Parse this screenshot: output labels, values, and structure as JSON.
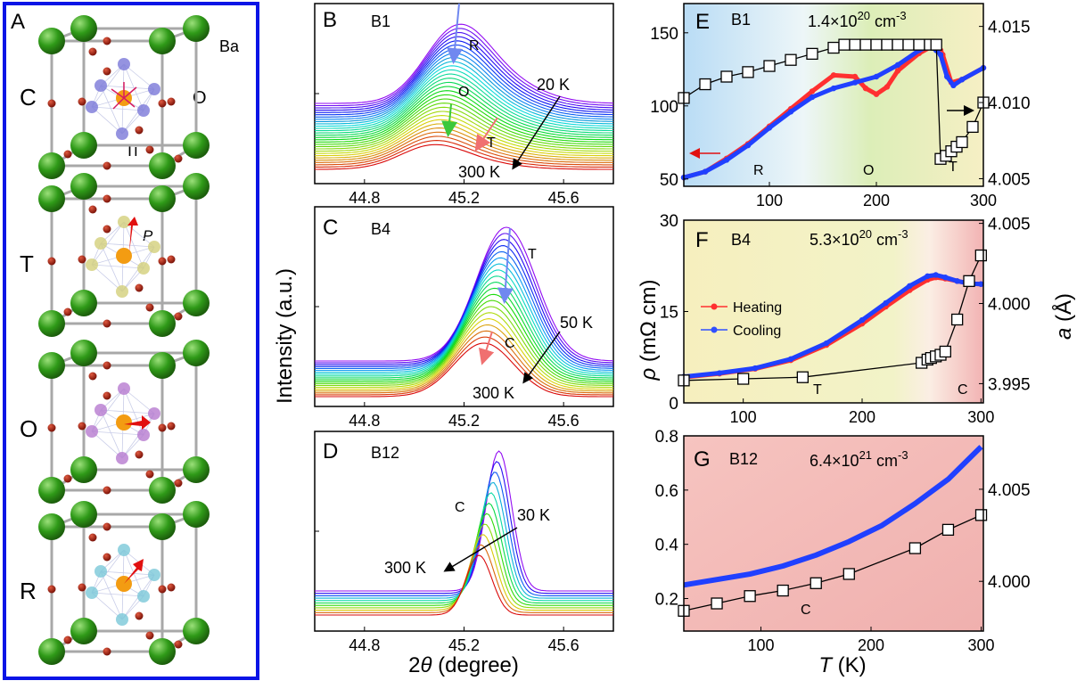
{
  "panel_a": {
    "letter": "A",
    "atom_labels": {
      "ba": "Ba",
      "o": "O",
      "ti": "Ti",
      "p": "P"
    },
    "phases": [
      "C",
      "T",
      "O",
      "R"
    ],
    "colors": {
      "ba": "#2f9a18",
      "o": "#a31f10",
      "ti": "#f39c12",
      "frame": "#0a14e6",
      "arrow": "#e11010"
    }
  },
  "xrd": {
    "shared_ylabel": "Intensity (a.u.)",
    "shared_xlabel": "2θ (degree)",
    "xlabel_theta": "θ",
    "xlabel_prefix": "2",
    "xlabel_unit": " (degree)",
    "ticks": [
      "44.8",
      "45.2",
      "45.6"
    ]
  },
  "chart_data": [
    {
      "type": "line",
      "panel": "B",
      "sample": "B1",
      "xlim": [
        44.6,
        45.8
      ],
      "xticks": [
        44.8,
        45.2,
        45.6
      ],
      "temperature_labels": [
        "20 K",
        "300 K"
      ],
      "phase_labels": [
        "R",
        "O",
        "T"
      ],
      "curve_count": 30,
      "peaks": {
        "R": 45.17,
        "O": 45.12,
        "T": 45.07
      }
    },
    {
      "type": "line",
      "panel": "C",
      "sample": "B4",
      "xlim": [
        44.6,
        45.8
      ],
      "xticks": [
        44.8,
        45.2,
        45.6
      ],
      "temperature_labels": [
        "50 K",
        "300 K"
      ],
      "phase_labels": [
        "T",
        "C"
      ],
      "curve_count": 20,
      "peaks": {
        "T": 45.37,
        "C": 45.28
      }
    },
    {
      "type": "line",
      "panel": "D",
      "sample": "B12",
      "xlim": [
        44.6,
        45.8
      ],
      "xticks": [
        44.8,
        45.2,
        45.6
      ],
      "temperature_labels": [
        "30 K",
        "300 K"
      ],
      "phase_labels": [
        "C"
      ],
      "curve_count": 11,
      "peaks": {
        "low_T": 45.34,
        "high_T": 45.26
      }
    },
    {
      "type": "line",
      "panel": "E",
      "sample": "B1",
      "carrier": "1.4×10",
      "carrier_exp": "20",
      "carrier_unit": " cm",
      "carrier_unit_exp": "-3",
      "xlim": [
        20,
        300
      ],
      "xticks": [
        100,
        200,
        300
      ],
      "ylim_left": [
        45,
        170
      ],
      "yticks_left": [
        50,
        100,
        150
      ],
      "ylim_right": [
        4.0045,
        4.0165
      ],
      "yticks_right": [
        "4.005",
        "4.010",
        "4.015"
      ],
      "phase_labels": [
        "R",
        "O",
        "T"
      ],
      "heating": {
        "x": [
          20,
          40,
          60,
          80,
          100,
          120,
          140,
          160,
          180,
          190,
          200,
          210,
          220,
          240,
          250,
          260,
          262,
          270,
          280,
          300
        ],
        "y": [
          51,
          55,
          64,
          74,
          86,
          98,
          110,
          121,
          120,
          112,
          108,
          113,
          124,
          136,
          140,
          138,
          135,
          116,
          118,
          126
        ]
      },
      "cooling": {
        "x": [
          20,
          40,
          60,
          80,
          100,
          120,
          140,
          160,
          180,
          200,
          220,
          240,
          250,
          256,
          260,
          266,
          272,
          280,
          300
        ],
        "y": [
          51,
          55,
          63,
          73,
          85,
          96,
          106,
          112,
          116,
          120,
          128,
          138,
          141,
          138,
          135,
          120,
          114,
          118,
          126
        ]
      },
      "lattice": {
        "x": [
          20,
          40,
          60,
          80,
          100,
          120,
          140,
          160,
          170,
          180,
          190,
          200,
          210,
          220,
          230,
          240,
          250,
          256,
          260,
          265,
          270,
          275,
          280,
          290,
          300
        ],
        "y": [
          4.0103,
          4.0112,
          4.0117,
          4.012,
          4.0124,
          4.0128,
          4.0132,
          4.0136,
          4.0138,
          4.0138,
          4.0138,
          4.0138,
          4.0138,
          4.0138,
          4.0138,
          4.0138,
          4.0138,
          4.0138,
          4.0063,
          4.0065,
          4.0068,
          4.0071,
          4.0074,
          4.0084,
          4.01
        ]
      }
    },
    {
      "type": "line",
      "panel": "F",
      "sample": "B4",
      "carrier": "5.3×10",
      "carrier_exp": "20",
      "carrier_unit": " cm",
      "carrier_unit_exp": "-3",
      "xlim": [
        50,
        302
      ],
      "xticks": [
        100,
        200,
        300
      ],
      "ylim_left": [
        0,
        30
      ],
      "yticks_left": [
        0,
        15,
        30
      ],
      "ylim_right": [
        3.9938,
        4.0052
      ],
      "yticks_right": [
        "3.995",
        "4.000",
        "4.005"
      ],
      "ylabel_left": "ρ (mΩ cm)",
      "ylabel_left_sym": "ρ",
      "ylabel_left_unit": " (mΩ cm)",
      "ylabel_right": "a (Å)",
      "ylabel_right_sym": "a",
      "ylabel_right_unit": " (Å)",
      "phase_labels": [
        "T",
        "C"
      ],
      "legend": [
        "Heating",
        "Cooling"
      ],
      "heating": {
        "x": [
          50,
          80,
          110,
          140,
          170,
          200,
          220,
          240,
          255,
          262,
          270,
          280,
          290,
          300
        ],
        "y": [
          4.2,
          4.8,
          5.6,
          7.0,
          9.5,
          13.0,
          15.8,
          18.5,
          20.2,
          20.6,
          20.4,
          20.0,
          19.6,
          19.5
        ]
      },
      "cooling": {
        "x": [
          50,
          80,
          110,
          140,
          170,
          200,
          220,
          240,
          255,
          262,
          270,
          280,
          290,
          300
        ],
        "y": [
          4.3,
          4.9,
          5.7,
          7.2,
          9.8,
          13.6,
          16.4,
          19.2,
          20.8,
          21.0,
          20.6,
          20.0,
          19.6,
          19.5
        ]
      },
      "lattice": {
        "x": [
          50,
          100,
          150,
          250,
          255,
          258,
          262,
          266,
          270,
          280,
          290,
          300
        ],
        "y": [
          3.9952,
          3.9953,
          3.9954,
          3.9963,
          3.9965,
          3.9966,
          3.9967,
          3.9968,
          3.997,
          3.999,
          4.0014,
          4.003
        ]
      }
    },
    {
      "type": "line",
      "panel": "G",
      "sample": "B12",
      "carrier": "6.4×10",
      "carrier_exp": "21",
      "carrier_unit": " cm",
      "carrier_unit_exp": "-3",
      "xlim": [
        30,
        302
      ],
      "xticks": [
        100,
        200,
        300
      ],
      "ylim_left": [
        0.08,
        0.8
      ],
      "yticks_left": [
        "0.2",
        "0.4",
        "0.6",
        "0.8"
      ],
      "ylim_right": [
        3.9973,
        4.0079
      ],
      "yticks_right": [
        "4.000",
        "4.005"
      ],
      "xlabel": "T (K)",
      "xlabel_sym": "T",
      "xlabel_unit": " (K)",
      "phase_labels": [
        "C"
      ],
      "resistivity": {
        "x": [
          30,
          60,
          90,
          120,
          150,
          180,
          210,
          240,
          270,
          300
        ],
        "y": [
          0.25,
          0.27,
          0.29,
          0.32,
          0.36,
          0.41,
          0.47,
          0.55,
          0.64,
          0.76
        ]
      },
      "lattice": {
        "x": [
          30,
          60,
          90,
          120,
          150,
          180,
          240,
          270,
          300
        ],
        "y": [
          3.9984,
          3.9988,
          3.9992,
          3.9995,
          3.9999,
          4.0004,
          4.0018,
          4.0028,
          4.0036
        ]
      }
    }
  ]
}
